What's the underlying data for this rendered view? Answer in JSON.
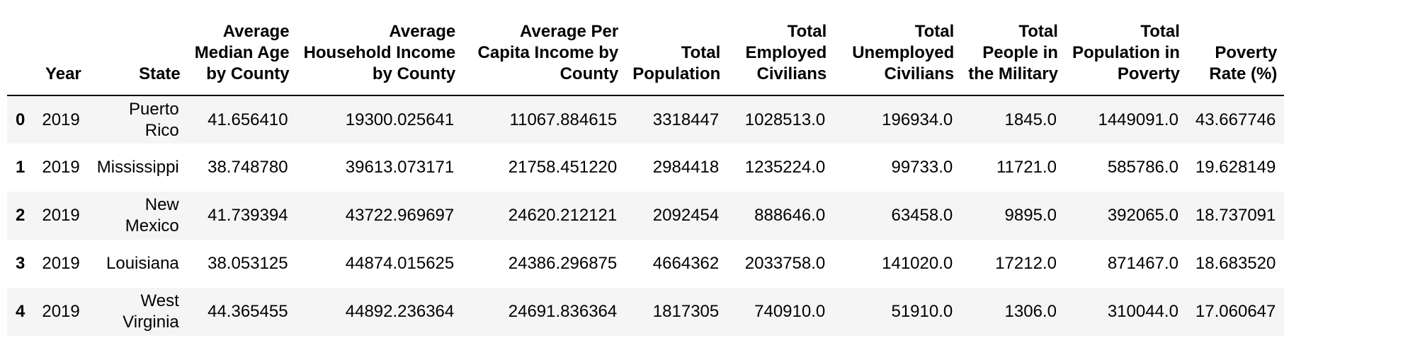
{
  "table": {
    "index_header": "",
    "columns": [
      {
        "lines": [
          "Year"
        ]
      },
      {
        "lines": [
          "State"
        ]
      },
      {
        "lines": [
          "Average",
          "Median Age",
          "by County"
        ]
      },
      {
        "lines": [
          "Average",
          "Household Income",
          "by County"
        ]
      },
      {
        "lines": [
          "Average Per",
          "Capita Income by",
          "County"
        ]
      },
      {
        "lines": [
          "Total",
          "Population"
        ]
      },
      {
        "lines": [
          "Total",
          "Employed",
          "Civilians"
        ]
      },
      {
        "lines": [
          "Total",
          "Unemployed",
          "Civilians"
        ]
      },
      {
        "lines": [
          "Total",
          "People in",
          "the Military"
        ]
      },
      {
        "lines": [
          "Total",
          "Population in",
          "Poverty"
        ]
      },
      {
        "lines": [
          "Poverty",
          "Rate (%)"
        ]
      }
    ],
    "rows": [
      {
        "index": "0",
        "year": "2019",
        "state": [
          "Puerto",
          "Rico"
        ],
        "cells": [
          "41.656410",
          "19300.025641",
          "11067.884615",
          "3318447",
          "1028513.0",
          "196934.0",
          "1845.0",
          "1449091.0",
          "43.667746"
        ]
      },
      {
        "index": "1",
        "year": "2019",
        "state": [
          "Mississippi"
        ],
        "cells": [
          "38.748780",
          "39613.073171",
          "21758.451220",
          "2984418",
          "1235224.0",
          "99733.0",
          "11721.0",
          "585786.0",
          "19.628149"
        ]
      },
      {
        "index": "2",
        "year": "2019",
        "state": [
          "New",
          "Mexico"
        ],
        "cells": [
          "41.739394",
          "43722.969697",
          "24620.212121",
          "2092454",
          "888646.0",
          "63458.0",
          "9895.0",
          "392065.0",
          "18.737091"
        ]
      },
      {
        "index": "3",
        "year": "2019",
        "state": [
          "Louisiana"
        ],
        "cells": [
          "38.053125",
          "44874.015625",
          "24386.296875",
          "4664362",
          "2033758.0",
          "141020.0",
          "17212.0",
          "871467.0",
          "18.683520"
        ]
      },
      {
        "index": "4",
        "year": "2019",
        "state": [
          "West",
          "Virginia"
        ],
        "cells": [
          "44.365455",
          "44892.236364",
          "24691.836364",
          "1817305",
          "740910.0",
          "51910.0",
          "1306.0",
          "310044.0",
          "17.060647"
        ]
      }
    ]
  }
}
